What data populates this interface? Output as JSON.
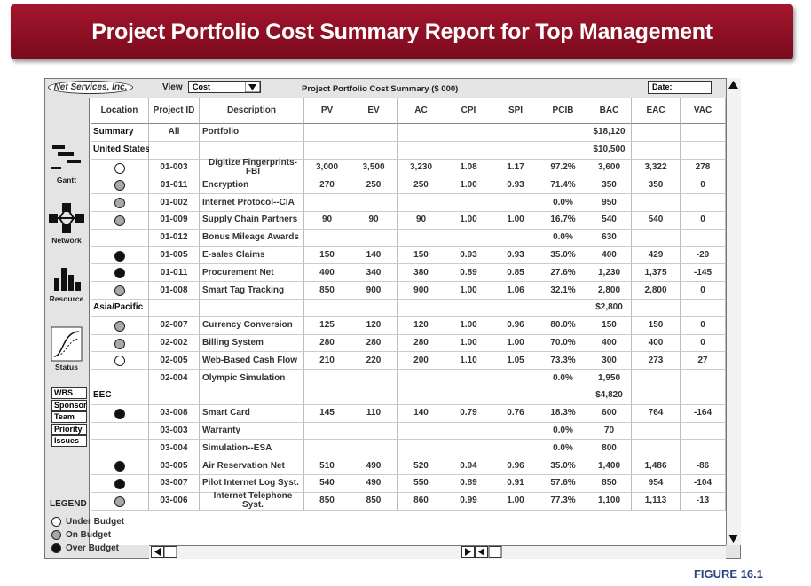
{
  "header": {
    "title": "Project Portfolio Cost Summary Report for Top Management"
  },
  "toolbar": {
    "company": "Net Services, Inc.",
    "view_label": "View",
    "view_value": "Cost",
    "report_title": "Project Portfolio Cost Summary ($ 000)",
    "date_label": "Date:"
  },
  "sidebar": {
    "tools": [
      "Gantt",
      "Network",
      "Resource",
      "Status"
    ],
    "buttons": [
      "WBS",
      "Sponsor",
      "Team",
      "Priority",
      "Issues"
    ],
    "legend": {
      "title": "LEGEND",
      "items": [
        {
          "label": "Under Budget",
          "color": "#ffffff"
        },
        {
          "label": "On Budget",
          "color": "#a8a8a8"
        },
        {
          "label": "Over Budget",
          "color": "#111111"
        }
      ]
    }
  },
  "table": {
    "columns": [
      "Location",
      "Project ID",
      "Description",
      "PV",
      "EV",
      "AC",
      "CPI",
      "SPI",
      "PCIB",
      "BAC",
      "EAC",
      "VAC"
    ],
    "rows": [
      {
        "cells": [
          "Summary",
          "All",
          "Portfolio",
          null,
          null,
          null,
          null,
          null,
          null,
          "$18,120",
          null,
          null
        ]
      },
      {
        "cells": [
          "United States",
          null,
          null,
          null,
          null,
          null,
          null,
          null,
          null,
          "$10,500",
          null,
          null
        ]
      },
      {
        "marker": "#ffffff",
        "cells": [
          null,
          "01-003",
          "Digitize Fingerprints-FBI",
          "3,000",
          "3,500",
          "3,230",
          "1.08",
          "1.17",
          "97.2%",
          "3,600",
          "3,322",
          "278"
        ]
      },
      {
        "marker": "#a8a8a8",
        "cells": [
          null,
          "01-011",
          "Encryption",
          "270",
          "250",
          "250",
          "1.00",
          "0.93",
          "71.4%",
          "350",
          "350",
          "0"
        ]
      },
      {
        "marker": "#a8a8a8",
        "cells": [
          null,
          "01-002",
          "Internet Protocol--CIA",
          null,
          null,
          null,
          null,
          null,
          "0.0%",
          "950",
          null,
          null
        ]
      },
      {
        "marker": "#a8a8a8",
        "cells": [
          null,
          "01-009",
          "Supply Chain Partners",
          "90",
          "90",
          "90",
          "1.00",
          "1.00",
          "16.7%",
          "540",
          "540",
          "0"
        ]
      },
      {
        "cells": [
          null,
          "01-012",
          "Bonus Mileage Awards",
          null,
          null,
          null,
          null,
          null,
          "0.0%",
          "630",
          null,
          null
        ]
      },
      {
        "marker": "#111111",
        "cells": [
          null,
          "01-005",
          "E-sales Claims",
          "150",
          "140",
          "150",
          "0.93",
          "0.93",
          "35.0%",
          "400",
          "429",
          "-29"
        ]
      },
      {
        "marker": "#111111",
        "cells": [
          null,
          "01-011",
          "Procurement Net",
          "400",
          "340",
          "380",
          "0.89",
          "0.85",
          "27.6%",
          "1,230",
          "1,375",
          "-145"
        ]
      },
      {
        "marker": "#a8a8a8",
        "cells": [
          null,
          "01-008",
          "Smart Tag Tracking",
          "850",
          "900",
          "900",
          "1.00",
          "1.06",
          "32.1%",
          "2,800",
          "2,800",
          "0"
        ]
      },
      {
        "cells": [
          "Asia/Pacific",
          null,
          null,
          null,
          null,
          null,
          null,
          null,
          null,
          "$2,800",
          null,
          null
        ]
      },
      {
        "marker": "#a8a8a8",
        "cells": [
          null,
          "02-007",
          "Currency Conversion",
          "125",
          "120",
          "120",
          "1.00",
          "0.96",
          "80.0%",
          "150",
          "150",
          "0"
        ]
      },
      {
        "marker": "#a8a8a8",
        "cells": [
          null,
          "02-002",
          "Billing System",
          "280",
          "280",
          "280",
          "1.00",
          "1.00",
          "70.0%",
          "400",
          "400",
          "0"
        ]
      },
      {
        "marker": "#ffffff",
        "cells": [
          null,
          "02-005",
          "Web-Based Cash Flow",
          "210",
          "220",
          "200",
          "1.10",
          "1.05",
          "73.3%",
          "300",
          "273",
          "27"
        ]
      },
      {
        "cells": [
          null,
          "02-004",
          "Olympic Simulation",
          null,
          null,
          null,
          null,
          null,
          "0.0%",
          "1,950",
          null,
          null
        ]
      },
      {
        "cells": [
          "EEC",
          null,
          null,
          null,
          null,
          null,
          null,
          null,
          null,
          "$4,820",
          null,
          null
        ]
      },
      {
        "marker": "#111111",
        "cells": [
          null,
          "03-008",
          "Smart Card",
          "145",
          "110",
          "140",
          "0.79",
          "0.76",
          "18.3%",
          "600",
          "764",
          "-164"
        ]
      },
      {
        "cells": [
          null,
          "03-003",
          "Warranty",
          null,
          null,
          null,
          null,
          null,
          "0.0%",
          "70",
          null,
          null
        ]
      },
      {
        "cells": [
          null,
          "03-004",
          "Simulation--ESA",
          null,
          null,
          null,
          null,
          null,
          "0.0%",
          "800",
          null,
          null
        ]
      },
      {
        "marker": "#111111",
        "cells": [
          null,
          "03-005",
          "Air Reservation Net",
          "510",
          "490",
          "520",
          "0.94",
          "0.96",
          "35.0%",
          "1,400",
          "1,486",
          "-86"
        ]
      },
      {
        "marker": "#111111",
        "cells": [
          null,
          "03-007",
          "Pilot Internet Log Syst.",
          "540",
          "490",
          "550",
          "0.89",
          "0.91",
          "57.6%",
          "850",
          "954",
          "-104"
        ]
      },
      {
        "marker": "#a8a8a8",
        "cells": [
          null,
          "03-006",
          "Internet Telephone Syst.",
          "850",
          "850",
          "860",
          "0.99",
          "1.00",
          "77.3%",
          "1,100",
          "1,113",
          "-13"
        ]
      }
    ]
  },
  "footer": {
    "figure": "FIGURE 16.1"
  }
}
